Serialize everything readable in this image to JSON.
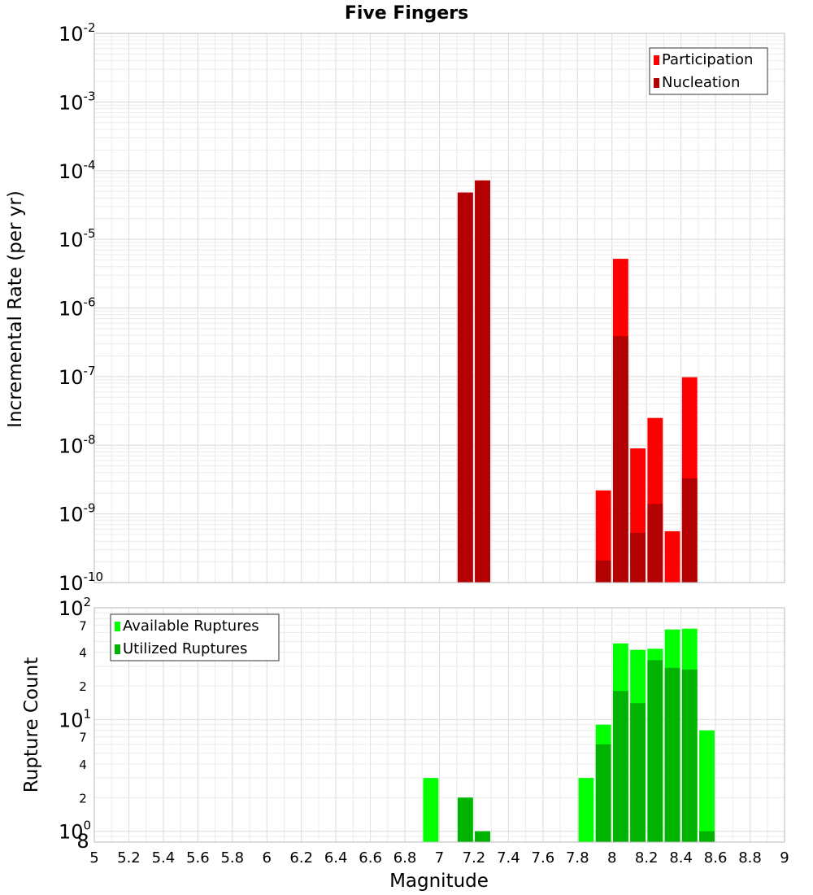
{
  "chart_data": [
    {
      "type": "bar",
      "title": "Five Fingers",
      "xlabel": "",
      "ylabel": "Incremental Rate (per yr)",
      "xlim": [
        5,
        9
      ],
      "ylim": [
        1e-10,
        0.01
      ],
      "yscale": "log",
      "grid": true,
      "legend_position": "top-right",
      "y_ticks": [
        {
          "base": "10",
          "exp": "-10"
        },
        {
          "base": "10",
          "exp": "-9"
        },
        {
          "base": "10",
          "exp": "-8"
        },
        {
          "base": "10",
          "exp": "-7"
        },
        {
          "base": "10",
          "exp": "-6"
        },
        {
          "base": "10",
          "exp": "-5"
        },
        {
          "base": "10",
          "exp": "-4"
        },
        {
          "base": "10",
          "exp": "-3"
        },
        {
          "base": "10",
          "exp": "-2"
        }
      ],
      "bin_width": 0.1,
      "x": [
        7.15,
        7.25,
        7.95,
        8.05,
        8.15,
        8.25,
        8.35,
        8.45
      ],
      "series": [
        {
          "name": "Participation",
          "color": "#ff0000",
          "values": [
            4.8e-05,
            7.2e-05,
            2.2e-09,
            5.2e-06,
            9e-09,
            2.5e-08,
            5.6e-10,
            9.8e-08
          ]
        },
        {
          "name": "Nucleation",
          "color": "#b30000",
          "values": [
            4.8e-05,
            7.2e-05,
            2.1e-10,
            3.9e-07,
            5.3e-10,
            1.4e-09,
            null,
            3.3e-09
          ]
        }
      ]
    },
    {
      "type": "bar",
      "title": "",
      "xlabel": "Magnitude",
      "ylabel": "Rupture Count",
      "xlim": [
        5,
        9
      ],
      "ylim": [
        0.8,
        100
      ],
      "yscale": "log",
      "grid": true,
      "legend_position": "top-left",
      "x_tick_labels": [
        "5",
        "5.2",
        "5.4",
        "5.6",
        "5.8",
        "6",
        "6.2",
        "6.4",
        "6.6",
        "6.8",
        "7",
        "7.2",
        "7.4",
        "7.6",
        "7.8",
        "8",
        "8.2",
        "8.4",
        "8.6",
        "8.8",
        "9"
      ],
      "y_ticks": [
        {
          "value": 1,
          "base": "10",
          "exp": "0"
        },
        {
          "value": 10,
          "base": "10",
          "exp": "1"
        },
        {
          "value": 100,
          "base": "10",
          "exp": "2"
        }
      ],
      "y_minor_labels": [
        {
          "value": 0.8,
          "label": "8"
        },
        {
          "value": 2,
          "label": "2"
        },
        {
          "value": 4,
          "label": "4"
        },
        {
          "value": 7,
          "label": "7"
        },
        {
          "value": 20,
          "label": "2"
        },
        {
          "value": 40,
          "label": "4"
        },
        {
          "value": 70,
          "label": "7"
        }
      ],
      "bin_width": 0.1,
      "x": [
        6.95,
        7.15,
        7.25,
        7.85,
        7.95,
        8.05,
        8.15,
        8.25,
        8.35,
        8.45,
        8.55
      ],
      "series": [
        {
          "name": "Available Ruptures",
          "color": "#00ff00",
          "values": [
            3,
            2,
            1,
            3,
            9,
            48,
            42,
            43,
            64,
            65,
            8
          ]
        },
        {
          "name": "Utilized Ruptures",
          "color": "#00b300",
          "values": [
            null,
            2,
            1,
            null,
            6,
            18,
            14,
            34,
            29,
            28,
            1
          ]
        }
      ]
    }
  ]
}
